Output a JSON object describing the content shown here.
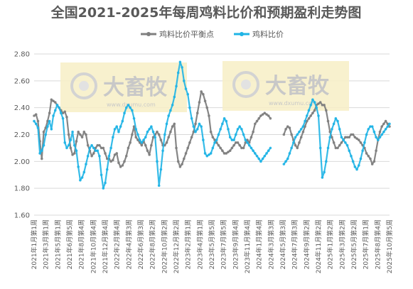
{
  "chart_data": {
    "type": "line",
    "title": "全国2021-2025年每周鸡料比价和预期盈利走势图",
    "ylim": [
      1.6,
      2.8
    ],
    "y_ticks": [
      "1.60",
      "1.80",
      "2.00",
      "2.20",
      "2.40",
      "2.60",
      "2.80"
    ],
    "grid": true,
    "legend_position": "top-center",
    "x_tick_labels": [
      "2021年1月第1周",
      "2021年3月第1周",
      "2021年5月第1周",
      "2021年6月第5周",
      "2021年8月第4周",
      "2021年10月第4周",
      "2021年12月第4周",
      "2022年2月第4周",
      "2022年4月第3周",
      "2022年6月第3周",
      "2022年8月第2周",
      "2022年10月第2周",
      "2022年12月第2周",
      "2023年2月第1周",
      "2023年4月第1周",
      "2023年5月第5周",
      "2023年7月第5周",
      "2023年9月第4周",
      "2023年11月第4周",
      "2024年1月第4周",
      "2024年3月第3周",
      "2024年5月第3周",
      "2024年7月第3周",
      "2024年9月第2周",
      "2024年11月第2周",
      "2025年1月第2周",
      "2025年3月第2周",
      "2025年5月第2周",
      "2025年7月第1周",
      "2025年8月第4周",
      "2025年10月第5周"
    ],
    "watermark": {
      "brand": "大畜牧",
      "url": "www.dxumu.com"
    },
    "series": [
      {
        "name": "鸡料比价平衡点",
        "color": "#7f7f7f",
        "values": [
          2.34,
          2.35,
          2.3,
          2.15,
          2.02,
          2.22,
          2.25,
          2.3,
          2.36,
          2.46,
          2.45,
          2.44,
          2.42,
          2.4,
          2.38,
          2.36,
          2.37,
          2.33,
          2.2,
          2.1,
          2.05,
          2.06,
          2.15,
          2.22,
          2.2,
          2.18,
          2.22,
          2.2,
          2.12,
          2.08,
          2.04,
          2.06,
          2.1,
          2.12,
          2.12,
          2.1,
          2.1,
          2.06,
          2.02,
          2.02,
          2.0,
          2.01,
          2.05,
          2.06,
          1.99,
          1.96,
          1.97,
          2.0,
          2.04,
          2.1,
          2.14,
          2.2,
          2.26,
          2.18,
          2.16,
          2.14,
          2.12,
          2.15,
          2.12,
          2.08,
          2.05,
          2.12,
          2.18,
          2.2,
          2.22,
          2.2,
          2.16,
          2.12,
          2.12,
          2.14,
          2.18,
          2.22,
          2.26,
          2.28,
          2.1,
          2.0,
          1.96,
          1.98,
          2.02,
          2.06,
          2.1,
          2.14,
          2.18,
          2.22,
          2.28,
          2.36,
          2.44,
          2.52,
          2.5,
          2.45,
          2.4,
          2.34,
          2.22,
          2.18,
          2.16,
          2.14,
          2.12,
          2.1,
          2.08,
          2.06,
          2.06,
          2.07,
          2.08,
          2.1,
          2.12,
          2.14,
          2.14,
          2.12,
          2.1,
          2.1,
          2.14,
          2.16,
          2.14,
          2.18,
          2.22,
          2.28,
          2.3,
          2.32,
          2.34,
          2.35,
          2.36,
          2.35,
          2.34,
          2.32,
          null,
          null,
          null,
          null,
          null,
          null,
          2.2,
          2.24,
          2.26,
          2.25,
          2.2,
          2.16,
          2.12,
          2.1,
          2.14,
          2.18,
          2.22,
          2.26,
          2.3,
          2.32,
          2.34,
          2.36,
          2.38,
          2.42,
          2.43,
          2.44,
          2.42,
          2.42,
          2.38,
          2.3,
          2.22,
          2.18,
          2.14,
          2.1,
          2.1,
          2.12,
          2.14,
          2.16,
          2.18,
          2.18,
          2.18,
          2.2,
          2.2,
          2.18,
          2.17,
          2.16,
          2.14,
          2.12,
          2.1,
          2.06,
          2.04,
          2.02,
          1.98,
          2.0,
          2.08,
          2.16,
          2.22,
          2.26,
          2.28,
          2.3,
          2.28,
          2.26
        ]
      },
      {
        "name": "鸡料比价",
        "color": "#1fb4e6",
        "values": [
          2.3,
          2.28,
          2.25,
          2.06,
          2.08,
          2.12,
          2.2,
          2.26,
          2.3,
          2.24,
          2.34,
          2.38,
          2.42,
          2.4,
          2.36,
          2.32,
          2.14,
          2.1,
          2.12,
          2.16,
          2.22,
          2.12,
          2.08,
          1.96,
          1.86,
          1.88,
          1.92,
          1.98,
          2.04,
          2.1,
          2.12,
          2.1,
          2.08,
          2.08,
          2.04,
          1.9,
          1.8,
          1.84,
          1.94,
          2.04,
          2.1,
          2.18,
          2.24,
          2.26,
          2.22,
          2.26,
          2.3,
          2.36,
          2.4,
          2.42,
          2.4,
          2.38,
          2.32,
          2.24,
          2.2,
          2.16,
          2.14,
          2.16,
          2.18,
          2.22,
          2.24,
          2.26,
          2.22,
          2.18,
          2.0,
          1.82,
          1.94,
          2.08,
          2.2,
          2.28,
          2.34,
          2.38,
          2.42,
          2.48,
          2.56,
          2.66,
          2.74,
          2.7,
          2.6,
          2.54,
          2.5,
          2.4,
          2.32,
          2.26,
          2.22,
          2.24,
          2.28,
          2.26,
          2.16,
          2.06,
          2.04,
          2.05,
          2.06,
          2.1,
          2.14,
          2.16,
          2.2,
          2.24,
          2.28,
          2.32,
          2.3,
          2.24,
          2.18,
          2.16,
          2.16,
          2.2,
          2.24,
          2.26,
          2.24,
          2.2,
          2.16,
          2.14,
          2.12,
          2.1,
          2.08,
          2.06,
          2.04,
          2.02,
          2.0,
          2.02,
          2.04,
          2.06,
          2.08,
          2.1,
          null,
          null,
          null,
          null,
          null,
          null,
          1.98,
          2.0,
          2.02,
          2.06,
          2.1,
          2.14,
          2.18,
          2.2,
          2.22,
          2.24,
          2.26,
          2.3,
          2.34,
          2.38,
          2.42,
          2.46,
          2.44,
          2.4,
          2.34,
          2.1,
          1.88,
          1.92,
          2.0,
          2.1,
          2.18,
          2.24,
          2.28,
          2.32,
          2.3,
          2.24,
          2.18,
          2.16,
          2.14,
          2.12,
          2.08,
          2.04,
          2.0,
          1.96,
          1.94,
          1.97,
          2.02,
          2.08,
          2.14,
          2.2,
          2.24,
          2.26,
          2.26,
          2.22,
          2.18,
          2.16,
          2.18,
          2.2,
          2.22,
          2.24,
          2.26,
          2.28
        ]
      }
    ]
  }
}
